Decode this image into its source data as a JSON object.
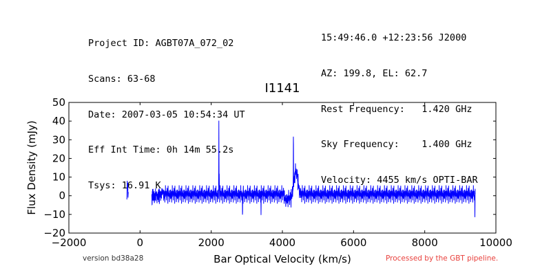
{
  "header": {
    "left_lines": [
      "Project ID: AGBT07A_072_02",
      "Scans: 63-68",
      "Date: 2007-03-05 10:54:34 UT",
      "Eff Int Time: 0h 14m 55.2s",
      "Tsys: 16.91 K"
    ],
    "right_lines": [
      "15:49:46.0 +12:23:56 J2000",
      "AZ: 199.8, EL: 62.7",
      "Rest Frequency:   1.420 GHz",
      "Sky Frequency:    1.400 GHz",
      "Velocity: 4455 km/s OPTI-BAR"
    ]
  },
  "footer": {
    "version": "version bd38a28",
    "pipeline": "Processed by the GBT pipeline.",
    "pipeline_color": "#e8403c"
  },
  "chart_data": {
    "type": "line",
    "title": "I1141",
    "xlabel": "Bar Optical Velocity (km/s)",
    "ylabel": "Flux Density (mJy)",
    "xlim": [
      -2000,
      10000
    ],
    "ylim": [
      -20,
      50
    ],
    "x_ticks": [
      -2000,
      0,
      2000,
      4000,
      6000,
      8000,
      10000
    ],
    "y_ticks": [
      -20,
      -10,
      0,
      10,
      20,
      30,
      40,
      50
    ],
    "x_tick_labels": [
      "−2000",
      "0",
      "2000",
      "4000",
      "6000",
      "8000",
      "10000"
    ],
    "y_tick_labels": [
      "−20",
      "−10",
      "0",
      "10",
      "20",
      "30",
      "40",
      "50"
    ],
    "grid": false,
    "line_color": "#0000ff",
    "segments": [
      {
        "x_range": [
          -370,
          -330
        ],
        "points": [
          [
            -370,
            -2
          ],
          [
            -360,
            8
          ],
          [
            -352,
            3
          ],
          [
            -345,
            7
          ],
          [
            -338,
            -1
          ],
          [
            -330,
            2
          ]
        ]
      },
      {
        "x_range": [
          330,
          9420
        ],
        "noise_rms": 2.2
      }
    ],
    "features": [
      {
        "x": 2215,
        "peak": 44.5,
        "kind": "spike"
      },
      {
        "x": 2225,
        "peak": 12,
        "kind": "spike"
      },
      {
        "x": 4310,
        "peak": 33.5,
        "kind": "spike"
      },
      {
        "x": 4380,
        "peak": 12,
        "width": 120,
        "kind": "bump"
      },
      {
        "x": 2880,
        "peak": -14,
        "kind": "dip"
      },
      {
        "x": 3400,
        "peak": -11,
        "kind": "dip"
      },
      {
        "x": 9410,
        "peak": -12.5,
        "kind": "dip"
      }
    ]
  }
}
